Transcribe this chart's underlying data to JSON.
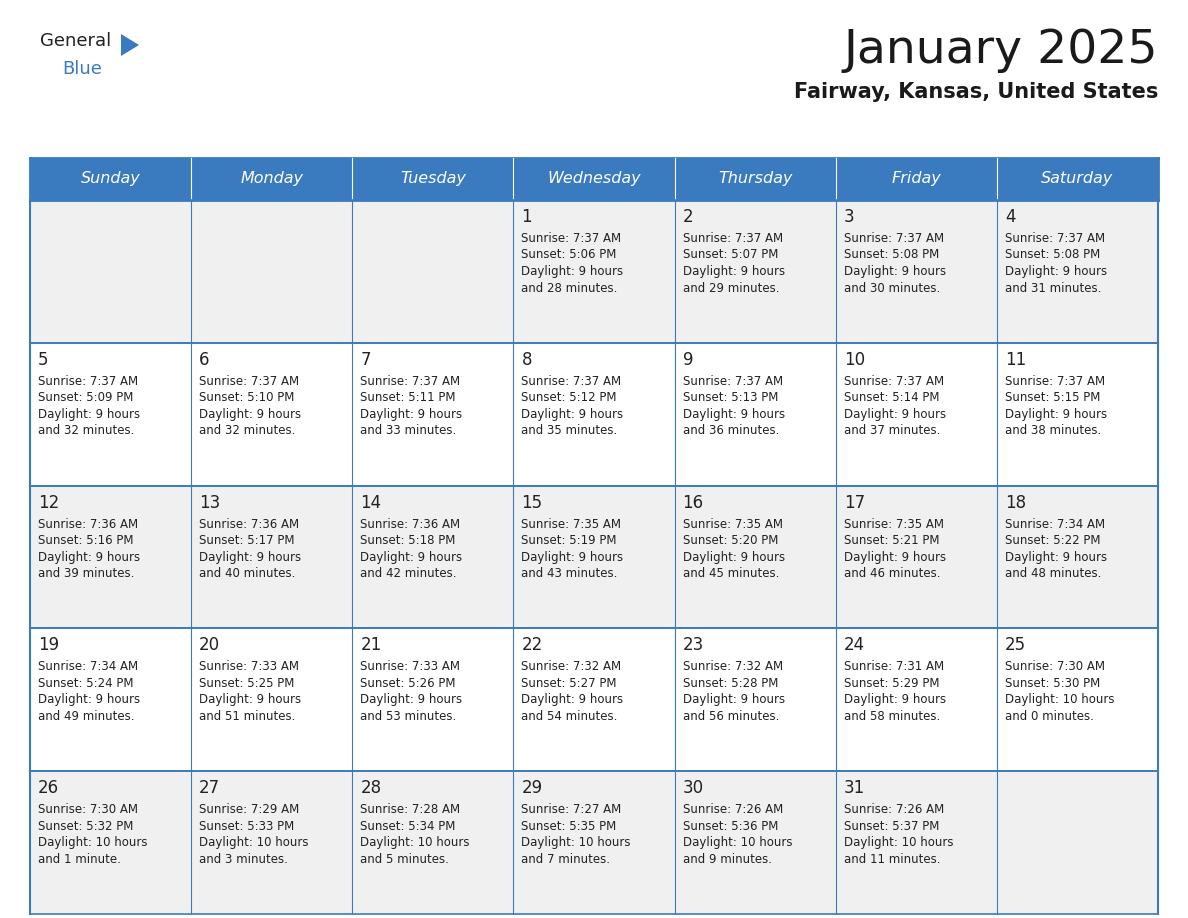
{
  "title": "January 2025",
  "subtitle": "Fairway, Kansas, United States",
  "days_of_week": [
    "Sunday",
    "Monday",
    "Tuesday",
    "Wednesday",
    "Thursday",
    "Friday",
    "Saturday"
  ],
  "header_bg": "#3a7abf",
  "header_text": "#ffffff",
  "cell_bg_odd": "#f0f0f0",
  "cell_bg_even": "#ffffff",
  "border_color": "#3a7abf",
  "text_color": "#222222",
  "logo_general_color": "#222222",
  "logo_blue_color": "#3a7abf",
  "logo_triangle_color": "#3a7abf",
  "calendar_data": [
    [
      null,
      null,
      null,
      {
        "day": 1,
        "sunrise": "7:37 AM",
        "sunset": "5:06 PM",
        "daylight": "9 hours and 28 minutes."
      },
      {
        "day": 2,
        "sunrise": "7:37 AM",
        "sunset": "5:07 PM",
        "daylight": "9 hours and 29 minutes."
      },
      {
        "day": 3,
        "sunrise": "7:37 AM",
        "sunset": "5:08 PM",
        "daylight": "9 hours and 30 minutes."
      },
      {
        "day": 4,
        "sunrise": "7:37 AM",
        "sunset": "5:08 PM",
        "daylight": "9 hours and 31 minutes."
      }
    ],
    [
      {
        "day": 5,
        "sunrise": "7:37 AM",
        "sunset": "5:09 PM",
        "daylight": "9 hours and 32 minutes."
      },
      {
        "day": 6,
        "sunrise": "7:37 AM",
        "sunset": "5:10 PM",
        "daylight": "9 hours and 32 minutes."
      },
      {
        "day": 7,
        "sunrise": "7:37 AM",
        "sunset": "5:11 PM",
        "daylight": "9 hours and 33 minutes."
      },
      {
        "day": 8,
        "sunrise": "7:37 AM",
        "sunset": "5:12 PM",
        "daylight": "9 hours and 35 minutes."
      },
      {
        "day": 9,
        "sunrise": "7:37 AM",
        "sunset": "5:13 PM",
        "daylight": "9 hours and 36 minutes."
      },
      {
        "day": 10,
        "sunrise": "7:37 AM",
        "sunset": "5:14 PM",
        "daylight": "9 hours and 37 minutes."
      },
      {
        "day": 11,
        "sunrise": "7:37 AM",
        "sunset": "5:15 PM",
        "daylight": "9 hours and 38 minutes."
      }
    ],
    [
      {
        "day": 12,
        "sunrise": "7:36 AM",
        "sunset": "5:16 PM",
        "daylight": "9 hours and 39 minutes."
      },
      {
        "day": 13,
        "sunrise": "7:36 AM",
        "sunset": "5:17 PM",
        "daylight": "9 hours and 40 minutes."
      },
      {
        "day": 14,
        "sunrise": "7:36 AM",
        "sunset": "5:18 PM",
        "daylight": "9 hours and 42 minutes."
      },
      {
        "day": 15,
        "sunrise": "7:35 AM",
        "sunset": "5:19 PM",
        "daylight": "9 hours and 43 minutes."
      },
      {
        "day": 16,
        "sunrise": "7:35 AM",
        "sunset": "5:20 PM",
        "daylight": "9 hours and 45 minutes."
      },
      {
        "day": 17,
        "sunrise": "7:35 AM",
        "sunset": "5:21 PM",
        "daylight": "9 hours and 46 minutes."
      },
      {
        "day": 18,
        "sunrise": "7:34 AM",
        "sunset": "5:22 PM",
        "daylight": "9 hours and 48 minutes."
      }
    ],
    [
      {
        "day": 19,
        "sunrise": "7:34 AM",
        "sunset": "5:24 PM",
        "daylight": "9 hours and 49 minutes."
      },
      {
        "day": 20,
        "sunrise": "7:33 AM",
        "sunset": "5:25 PM",
        "daylight": "9 hours and 51 minutes."
      },
      {
        "day": 21,
        "sunrise": "7:33 AM",
        "sunset": "5:26 PM",
        "daylight": "9 hours and 53 minutes."
      },
      {
        "day": 22,
        "sunrise": "7:32 AM",
        "sunset": "5:27 PM",
        "daylight": "9 hours and 54 minutes."
      },
      {
        "day": 23,
        "sunrise": "7:32 AM",
        "sunset": "5:28 PM",
        "daylight": "9 hours and 56 minutes."
      },
      {
        "day": 24,
        "sunrise": "7:31 AM",
        "sunset": "5:29 PM",
        "daylight": "9 hours and 58 minutes."
      },
      {
        "day": 25,
        "sunrise": "7:30 AM",
        "sunset": "5:30 PM",
        "daylight": "10 hours and 0 minutes."
      }
    ],
    [
      {
        "day": 26,
        "sunrise": "7:30 AM",
        "sunset": "5:32 PM",
        "daylight": "10 hours and 1 minute."
      },
      {
        "day": 27,
        "sunrise": "7:29 AM",
        "sunset": "5:33 PM",
        "daylight": "10 hours and 3 minutes."
      },
      {
        "day": 28,
        "sunrise": "7:28 AM",
        "sunset": "5:34 PM",
        "daylight": "10 hours and 5 minutes."
      },
      {
        "day": 29,
        "sunrise": "7:27 AM",
        "sunset": "5:35 PM",
        "daylight": "10 hours and 7 minutes."
      },
      {
        "day": 30,
        "sunrise": "7:26 AM",
        "sunset": "5:36 PM",
        "daylight": "10 hours and 9 minutes."
      },
      {
        "day": 31,
        "sunrise": "7:26 AM",
        "sunset": "5:37 PM",
        "daylight": "10 hours and 11 minutes."
      },
      null
    ]
  ],
  "figsize": [
    11.88,
    9.18
  ],
  "dpi": 100
}
